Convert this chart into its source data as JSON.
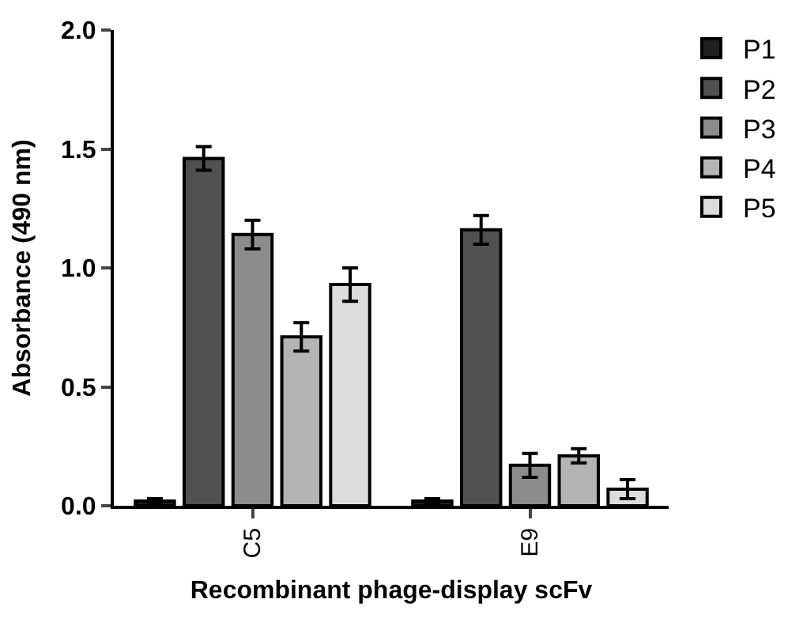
{
  "chart_data": {
    "type": "bar",
    "xlabel": "Recombinant phage-display scFv",
    "ylabel": "Absorbance (490 nm)",
    "categories": [
      "C5",
      "E9"
    ],
    "series": [
      {
        "name": "P1",
        "color": "#202020",
        "values": [
          0.02,
          0.02
        ],
        "errors": [
          0.01,
          0.01
        ]
      },
      {
        "name": "P2",
        "color": "#505050",
        "values": [
          1.46,
          1.16
        ],
        "errors": [
          0.05,
          0.06
        ]
      },
      {
        "name": "P3",
        "color": "#8c8c8c",
        "values": [
          1.14,
          0.17
        ],
        "errors": [
          0.06,
          0.05
        ]
      },
      {
        "name": "P4",
        "color": "#b4b4b4",
        "values": [
          0.71,
          0.21
        ],
        "errors": [
          0.06,
          0.03
        ]
      },
      {
        "name": "P5",
        "color": "#dcdcdc",
        "values": [
          0.93,
          0.07
        ],
        "errors": [
          0.07,
          0.04
        ]
      }
    ],
    "ylim": [
      0,
      2.0
    ],
    "yticks": [
      {
        "value": 0,
        "label": "0.0"
      },
      {
        "value": 0.5,
        "label": "0.5"
      },
      {
        "value": 1.0,
        "label": "1.0"
      },
      {
        "value": 1.5,
        "label": "1.5"
      },
      {
        "value": 2.0,
        "label": "2.0"
      }
    ],
    "legend": "top right"
  }
}
